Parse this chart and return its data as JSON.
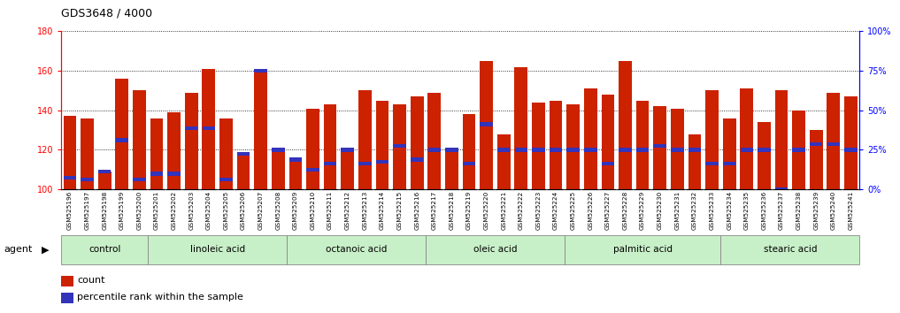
{
  "title": "GDS3648 / 4000",
  "samples": [
    "GSM525196",
    "GSM525197",
    "GSM525198",
    "GSM525199",
    "GSM525200",
    "GSM525201",
    "GSM525202",
    "GSM525203",
    "GSM525204",
    "GSM525205",
    "GSM525206",
    "GSM525207",
    "GSM525208",
    "GSM525209",
    "GSM525210",
    "GSM525211",
    "GSM525212",
    "GSM525213",
    "GSM525214",
    "GSM525215",
    "GSM525216",
    "GSM525217",
    "GSM525218",
    "GSM525219",
    "GSM525220",
    "GSM525221",
    "GSM525222",
    "GSM525223",
    "GSM525224",
    "GSM525225",
    "GSM525226",
    "GSM525227",
    "GSM525228",
    "GSM525229",
    "GSM525230",
    "GSM525231",
    "GSM525232",
    "GSM525233",
    "GSM525234",
    "GSM525235",
    "GSM525236",
    "GSM525237",
    "GSM525238",
    "GSM525239",
    "GSM525240",
    "GSM525241"
  ],
  "bar_heights": [
    137,
    136,
    109,
    156,
    150,
    136,
    139,
    149,
    161,
    136,
    118,
    160,
    120,
    115,
    141,
    143,
    120,
    150,
    145,
    143,
    147,
    149,
    120,
    138,
    165,
    128,
    162,
    144,
    145,
    143,
    151,
    148,
    165,
    145,
    142,
    141,
    128,
    150,
    136,
    151,
    134,
    150,
    140,
    130,
    149,
    147
  ],
  "blue_dot_positions": [
    106,
    105,
    109,
    125,
    105,
    108,
    108,
    131,
    131,
    105,
    118,
    160,
    120,
    115,
    110,
    113,
    120,
    113,
    114,
    122,
    115,
    120,
    120,
    113,
    133,
    120,
    120,
    120,
    120,
    120,
    120,
    113,
    120,
    120,
    122,
    120,
    120,
    113,
    113,
    120,
    120,
    100,
    120,
    123,
    123,
    120
  ],
  "groups": [
    {
      "label": "control",
      "start": 0,
      "end": 5
    },
    {
      "label": "linoleic acid",
      "start": 5,
      "end": 13
    },
    {
      "label": "octanoic acid",
      "start": 13,
      "end": 21
    },
    {
      "label": "oleic acid",
      "start": 21,
      "end": 29
    },
    {
      "label": "palmitic acid",
      "start": 29,
      "end": 38
    },
    {
      "label": "stearic acid",
      "start": 38,
      "end": 46
    }
  ],
  "bar_color": "#cc2200",
  "blue_color": "#3333bb",
  "group_bg_color": "#c8f0c8",
  "ylim_left": [
    100,
    180
  ],
  "yticks_left": [
    100,
    120,
    140,
    160,
    180
  ],
  "yticks_right": [
    0,
    25,
    50,
    75,
    100
  ],
  "ytick_labels_right": [
    "0%",
    "25%",
    "50%",
    "75%",
    "100%"
  ],
  "legend_count_label": "count",
  "legend_pct_label": "percentile rank within the sample",
  "agent_label": "agent"
}
